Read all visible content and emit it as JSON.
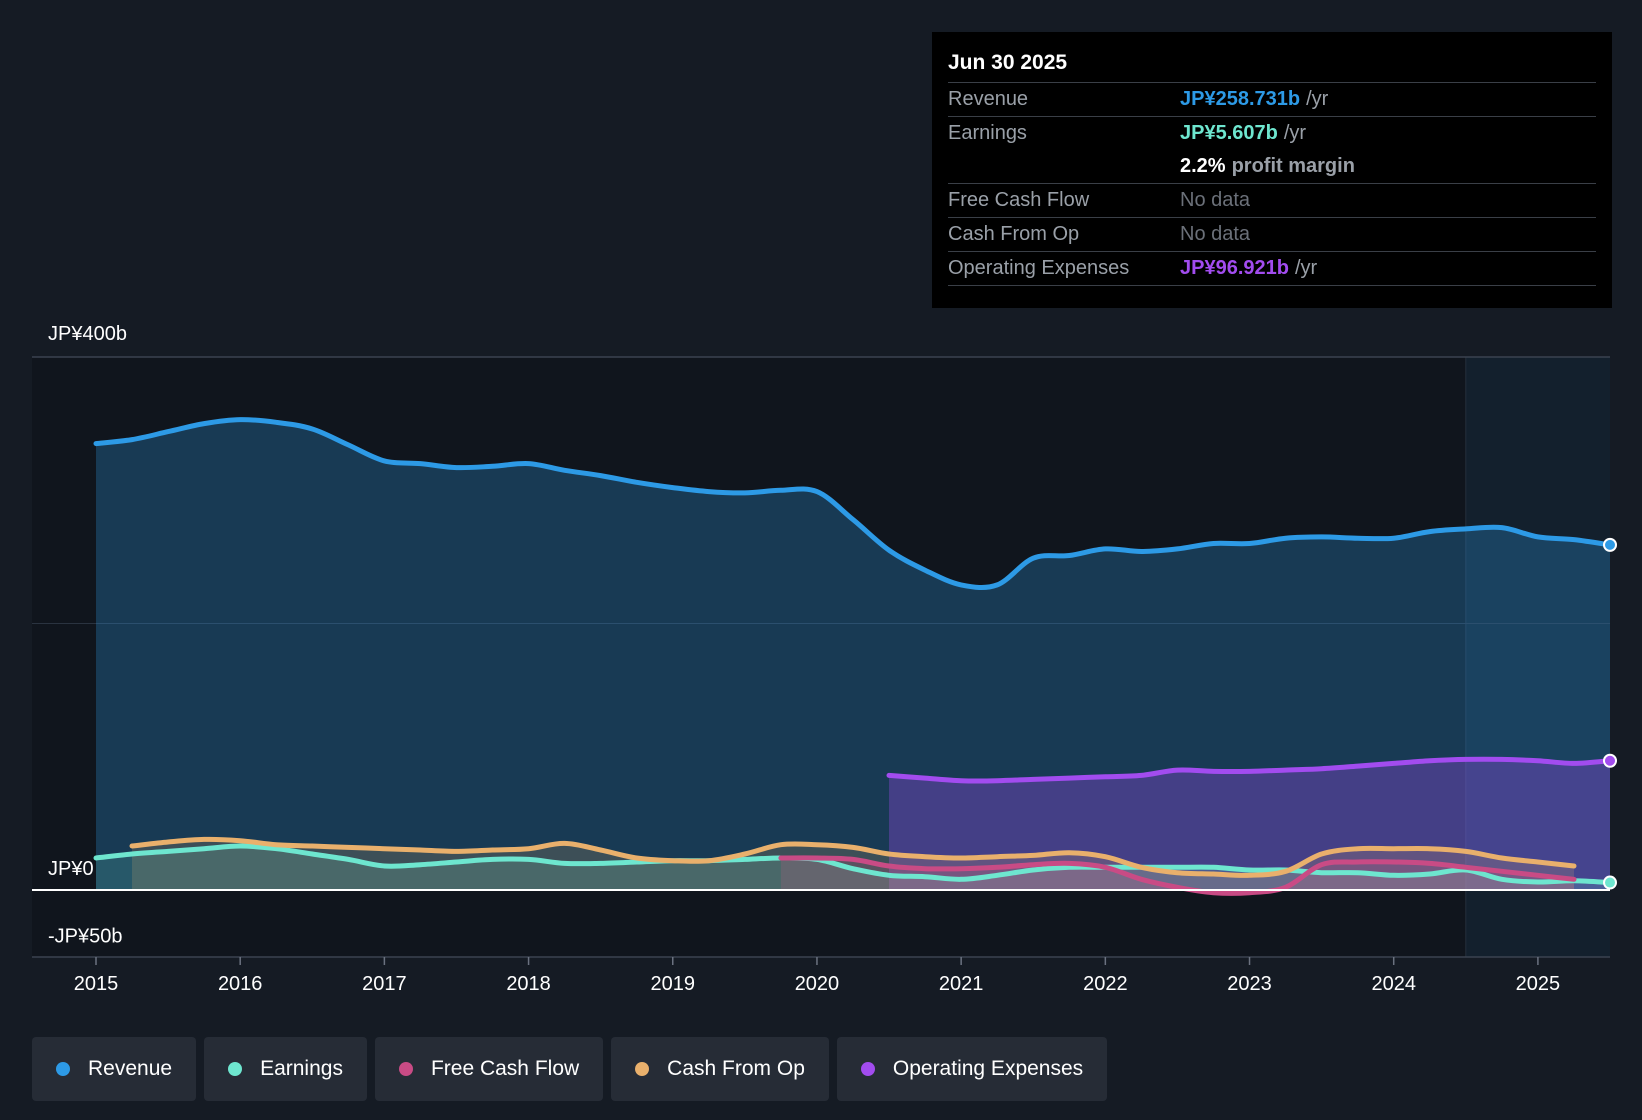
{
  "tooltip": {
    "date": "Jun 30 2025",
    "revenue_label": "Revenue",
    "revenue_value": "JP¥258.731b",
    "earnings_label": "Earnings",
    "earnings_value": "JP¥5.607b",
    "margin_value": "2.2%",
    "margin_label": "profit margin",
    "fcf_label": "Free Cash Flow",
    "fcf_value": "No data",
    "cfo_label": "Cash From Op",
    "cfo_value": "No data",
    "opex_label": "Operating Expenses",
    "opex_value": "JP¥96.921b",
    "unit": "/yr"
  },
  "legend": [
    {
      "label": "Revenue",
      "color": "#2d9ae6"
    },
    {
      "label": "Earnings",
      "color": "#6ee6cf"
    },
    {
      "label": "Free Cash Flow",
      "color": "#c94b85"
    },
    {
      "label": "Cash From Op",
      "color": "#e9b06c"
    },
    {
      "label": "Operating Expenses",
      "color": "#a24cef"
    }
  ],
  "chart_data": {
    "type": "line",
    "title": "",
    "xlabel": "",
    "ylabel": "",
    "ylim": [
      -50,
      400
    ],
    "xlim": [
      2015.0,
      2025.5
    ],
    "y_tick_labels": [
      {
        "value": 400,
        "label": "JP¥400b"
      },
      {
        "value": 0,
        "label": "JP¥0"
      },
      {
        "value": -50,
        "label": "-JP¥50b"
      }
    ],
    "x_ticks": [
      2015,
      2016,
      2017,
      2018,
      2019,
      2020,
      2021,
      2022,
      2023,
      2024,
      2025
    ],
    "forecast_start": 2024.5,
    "series": [
      {
        "name": "Revenue",
        "color": "#2d9ae6",
        "fill": true,
        "end_marker": true,
        "points": [
          [
            2015.0,
            335
          ],
          [
            2015.25,
            338
          ],
          [
            2015.5,
            344
          ],
          [
            2015.75,
            350
          ],
          [
            2016.0,
            353
          ],
          [
            2016.25,
            351
          ],
          [
            2016.5,
            346
          ],
          [
            2016.75,
            334
          ],
          [
            2017.0,
            322
          ],
          [
            2017.25,
            320
          ],
          [
            2017.5,
            317
          ],
          [
            2017.75,
            318
          ],
          [
            2018.0,
            320
          ],
          [
            2018.25,
            315
          ],
          [
            2018.5,
            311
          ],
          [
            2018.75,
            306
          ],
          [
            2019.0,
            302
          ],
          [
            2019.25,
            299
          ],
          [
            2019.5,
            298
          ],
          [
            2019.75,
            300
          ],
          [
            2020.0,
            299
          ],
          [
            2020.25,
            278
          ],
          [
            2020.5,
            255
          ],
          [
            2020.75,
            240
          ],
          [
            2021.0,
            229
          ],
          [
            2021.25,
            229
          ],
          [
            2021.5,
            249
          ],
          [
            2021.75,
            251
          ],
          [
            2022.0,
            256
          ],
          [
            2022.25,
            254
          ],
          [
            2022.5,
            256
          ],
          [
            2022.75,
            260
          ],
          [
            2023.0,
            260
          ],
          [
            2023.25,
            264
          ],
          [
            2023.5,
            265
          ],
          [
            2023.75,
            264
          ],
          [
            2024.0,
            264
          ],
          [
            2024.25,
            269
          ],
          [
            2024.5,
            271
          ],
          [
            2024.75,
            272
          ],
          [
            2025.0,
            265
          ],
          [
            2025.25,
            263
          ],
          [
            2025.5,
            259
          ]
        ]
      },
      {
        "name": "Operating Expenses",
        "color": "#a24cef",
        "fill": true,
        "end_marker": true,
        "points": [
          [
            2020.5,
            86
          ],
          [
            2020.75,
            84
          ],
          [
            2021.0,
            82
          ],
          [
            2021.25,
            82
          ],
          [
            2021.5,
            83
          ],
          [
            2021.75,
            84
          ],
          [
            2022.0,
            85
          ],
          [
            2022.25,
            86
          ],
          [
            2022.5,
            90
          ],
          [
            2022.75,
            89
          ],
          [
            2023.0,
            89
          ],
          [
            2023.25,
            90
          ],
          [
            2023.5,
            91
          ],
          [
            2023.75,
            93
          ],
          [
            2024.0,
            95
          ],
          [
            2024.25,
            97
          ],
          [
            2024.5,
            98
          ],
          [
            2024.75,
            98
          ],
          [
            2025.0,
            97
          ],
          [
            2025.25,
            95
          ],
          [
            2025.5,
            97
          ]
        ]
      },
      {
        "name": "Earnings",
        "color": "#6ee6cf",
        "fill": true,
        "end_marker": true,
        "points": [
          [
            2015.0,
            24
          ],
          [
            2015.25,
            27
          ],
          [
            2015.5,
            29
          ],
          [
            2015.75,
            31
          ],
          [
            2016.0,
            33
          ],
          [
            2016.25,
            31
          ],
          [
            2016.5,
            27
          ],
          [
            2016.75,
            23
          ],
          [
            2017.0,
            18
          ],
          [
            2017.25,
            19
          ],
          [
            2017.5,
            21
          ],
          [
            2017.75,
            23
          ],
          [
            2018.0,
            23
          ],
          [
            2018.25,
            20
          ],
          [
            2018.5,
            20
          ],
          [
            2018.75,
            21
          ],
          [
            2019.0,
            22
          ],
          [
            2019.25,
            22
          ],
          [
            2019.5,
            23
          ],
          [
            2019.75,
            24
          ],
          [
            2020.0,
            23
          ],
          [
            2020.25,
            16
          ],
          [
            2020.5,
            11
          ],
          [
            2020.75,
            10
          ],
          [
            2021.0,
            8
          ],
          [
            2021.25,
            11
          ],
          [
            2021.5,
            15
          ],
          [
            2021.75,
            17
          ],
          [
            2022.0,
            17
          ],
          [
            2022.25,
            17
          ],
          [
            2022.5,
            17
          ],
          [
            2022.75,
            17
          ],
          [
            2023.0,
            15
          ],
          [
            2023.25,
            15
          ],
          [
            2023.5,
            13
          ],
          [
            2023.75,
            13
          ],
          [
            2024.0,
            11
          ],
          [
            2024.25,
            12
          ],
          [
            2024.5,
            15
          ],
          [
            2024.75,
            8
          ],
          [
            2025.0,
            6
          ],
          [
            2025.25,
            7
          ],
          [
            2025.5,
            5.6
          ]
        ]
      },
      {
        "name": "Free Cash Flow",
        "color": "#c94b85",
        "fill": true,
        "end_marker": false,
        "points": [
          [
            2019.75,
            24
          ],
          [
            2020.0,
            24
          ],
          [
            2020.25,
            23
          ],
          [
            2020.5,
            18
          ],
          [
            2020.75,
            16
          ],
          [
            2021.0,
            16
          ],
          [
            2021.25,
            17
          ],
          [
            2021.5,
            19
          ],
          [
            2021.75,
            20
          ],
          [
            2022.0,
            17
          ],
          [
            2022.25,
            8
          ],
          [
            2022.5,
            2
          ],
          [
            2022.75,
            -2
          ],
          [
            2023.0,
            -2
          ],
          [
            2023.25,
            2
          ],
          [
            2023.5,
            19
          ],
          [
            2023.75,
            21
          ],
          [
            2024.0,
            21
          ],
          [
            2024.25,
            20
          ],
          [
            2024.5,
            17
          ],
          [
            2024.75,
            14
          ],
          [
            2025.0,
            11
          ],
          [
            2025.25,
            8
          ]
        ]
      },
      {
        "name": "Cash From Op",
        "color": "#e9b06c",
        "fill": true,
        "end_marker": false,
        "points": [
          [
            2015.25,
            33
          ],
          [
            2015.5,
            36
          ],
          [
            2015.75,
            38
          ],
          [
            2016.0,
            37
          ],
          [
            2016.25,
            34
          ],
          [
            2016.5,
            33
          ],
          [
            2016.75,
            32
          ],
          [
            2017.0,
            31
          ],
          [
            2017.25,
            30
          ],
          [
            2017.5,
            29
          ],
          [
            2017.75,
            30
          ],
          [
            2018.0,
            31
          ],
          [
            2018.25,
            35
          ],
          [
            2018.5,
            30
          ],
          [
            2018.75,
            24
          ],
          [
            2019.0,
            22
          ],
          [
            2019.25,
            22
          ],
          [
            2019.5,
            27
          ],
          [
            2019.75,
            34
          ],
          [
            2020.0,
            34
          ],
          [
            2020.25,
            32
          ],
          [
            2020.5,
            27
          ],
          [
            2020.75,
            25
          ],
          [
            2021.0,
            24
          ],
          [
            2021.25,
            25
          ],
          [
            2021.5,
            26
          ],
          [
            2021.75,
            28
          ],
          [
            2022.0,
            25
          ],
          [
            2022.25,
            17
          ],
          [
            2022.5,
            13
          ],
          [
            2022.75,
            12
          ],
          [
            2023.0,
            11
          ],
          [
            2023.25,
            14
          ],
          [
            2023.5,
            27
          ],
          [
            2023.75,
            31
          ],
          [
            2024.0,
            31
          ],
          [
            2024.25,
            31
          ],
          [
            2024.5,
            29
          ],
          [
            2024.75,
            24
          ],
          [
            2025.0,
            21
          ],
          [
            2025.25,
            18
          ]
        ]
      }
    ]
  }
}
